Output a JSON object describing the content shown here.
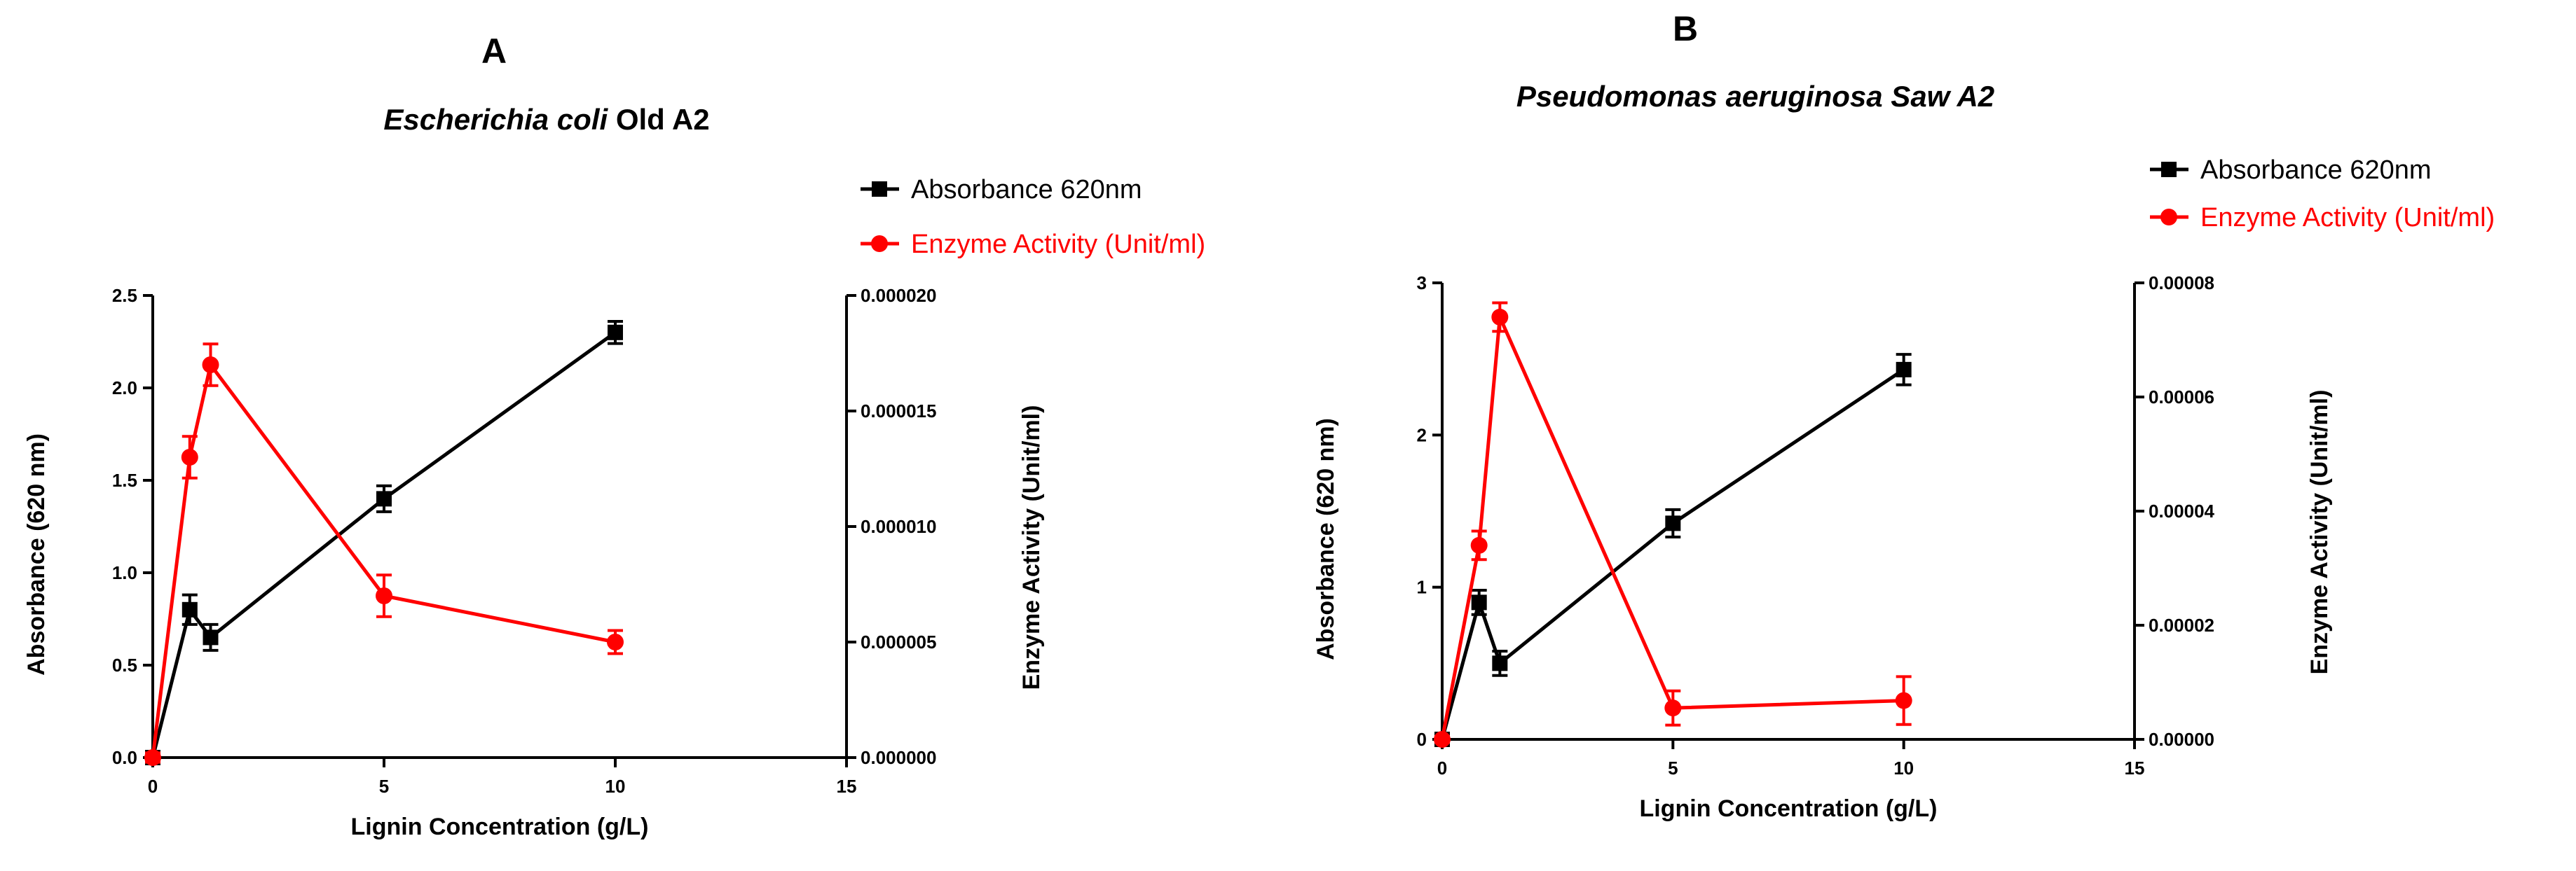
{
  "colors": {
    "absorbance": "#000000",
    "enzyme": "#ff0000"
  },
  "legend": {
    "absorbance": "Absorbance 620nm",
    "enzyme": "Enzyme Activity (Unit/ml)"
  },
  "chart_data": [
    {
      "type": "line",
      "panel_letter": "A",
      "title_italic": "Escherichia coli",
      "title_rest": " Old A2",
      "xlabel": "Lignin Concentration (g/L)",
      "ylabel_left": "Absorbance (620 nm)",
      "ylabel_right": "Enzyme Activity (Unit/ml)",
      "xlim": [
        0,
        15
      ],
      "x_ticks": [
        "0",
        "5",
        "10",
        "15"
      ],
      "ylim_left": [
        0,
        2.5
      ],
      "y_left_ticks": [
        "0.0",
        "0.5",
        "1.0",
        "1.5",
        "2.0",
        "2.5"
      ],
      "ylim_right": [
        0,
        2e-05
      ],
      "y_right_ticks": [
        "0.000000",
        "0.000005",
        "0.000010",
        "0.000015",
        "0.000020"
      ],
      "legend_position": "top-right",
      "series": [
        {
          "name": "Absorbance 620nm",
          "axis": "left",
          "marker": "square",
          "x": [
            0,
            0.8,
            1.25,
            5,
            10
          ],
          "y": [
            0,
            0.8,
            0.65,
            1.4,
            2.3
          ],
          "err": [
            0.02,
            0.08,
            0.07,
            0.07,
            0.06
          ]
        },
        {
          "name": "Enzyme Activity (Unit/ml)",
          "axis": "right",
          "marker": "circle",
          "x": [
            0,
            0.8,
            1.25,
            5,
            10
          ],
          "y": [
            0,
            1.3e-05,
            1.7e-05,
            7e-06,
            5e-06
          ],
          "err": [
            2e-07,
            9e-07,
            9e-07,
            9e-07,
            5e-07
          ]
        }
      ]
    },
    {
      "type": "line",
      "panel_letter": "B",
      "title_italic": "Pseudomonas aeruginosa Saw A2",
      "title_rest": "",
      "xlabel": "Lignin Concentration (g/L)",
      "ylabel_left": "Absorbance (620 nm)",
      "ylabel_right": "Enzyme Activity (Unit/ml)",
      "xlim": [
        0,
        15
      ],
      "x_ticks": [
        "0",
        "5",
        "10",
        "15"
      ],
      "ylim_left": [
        0,
        3
      ],
      "y_left_ticks": [
        "0",
        "1",
        "2",
        "3"
      ],
      "ylim_right": [
        0,
        8e-05
      ],
      "y_right_ticks": [
        "0.00000",
        "0.00002",
        "0.00004",
        "0.00006",
        "0.00008"
      ],
      "legend_position": "top-right",
      "series": [
        {
          "name": "Absorbance 620nm",
          "axis": "left",
          "marker": "square",
          "x": [
            0,
            0.8,
            1.25,
            5,
            10
          ],
          "y": [
            0,
            0.9,
            0.5,
            1.42,
            2.43
          ],
          "err": [
            0.02,
            0.08,
            0.08,
            0.09,
            0.1
          ]
        },
        {
          "name": "Enzyme Activity (Unit/ml)",
          "axis": "right",
          "marker": "circle",
          "x": [
            0,
            0.8,
            1.25,
            5,
            10
          ],
          "y": [
            0,
            3.4e-05,
            7.4e-05,
            5.5e-06,
            6.8e-06
          ],
          "err": [
            5e-07,
            2.5e-06,
            2.5e-06,
            3e-06,
            4.2e-06
          ]
        }
      ]
    }
  ]
}
